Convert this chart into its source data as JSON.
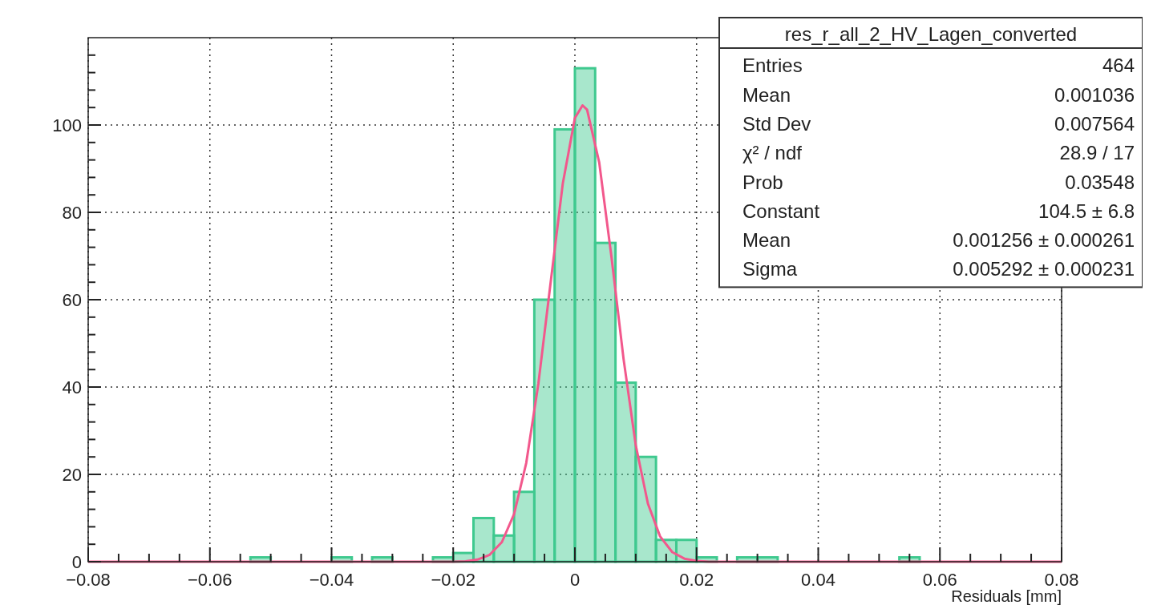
{
  "chart_data": {
    "type": "histogram",
    "xlabel": "Residuals [mm]",
    "bins": [
      -0.08,
      -0.07667,
      -0.07333,
      -0.07,
      -0.06667,
      -0.06333,
      -0.06,
      -0.05667,
      -0.05333,
      -0.05,
      -0.04667,
      -0.04333,
      -0.04,
      -0.03667,
      -0.03333,
      -0.03,
      -0.02667,
      -0.02333,
      -0.02,
      -0.01667,
      -0.01333,
      -0.01,
      -0.00667,
      -0.00333,
      0,
      0.00333,
      0.00667,
      0.01,
      0.01333,
      0.01667,
      0.02,
      0.02333,
      0.02667,
      0.03,
      0.03333,
      0.03667,
      0.04,
      0.04333,
      0.04667,
      0.05,
      0.05333,
      0.05667,
      0.06,
      0.06333,
      0.06667,
      0.07,
      0.07333,
      0.07667,
      0.08
    ],
    "series": [
      {
        "color": "#3fc98f",
        "values": [
          0,
          0,
          0,
          0,
          0,
          0,
          0,
          0,
          1,
          0,
          0,
          0,
          1,
          0,
          1,
          0,
          0,
          1,
          2,
          10,
          6,
          16,
          60,
          99,
          113,
          73,
          41,
          24,
          5,
          5,
          1,
          0,
          1,
          1,
          0,
          0,
          0,
          0,
          0,
          0,
          1,
          0,
          0,
          0,
          0,
          0,
          0,
          0
        ]
      },
      {
        "type": "line",
        "color": "#f2588c",
        "x": [
          -0.08,
          -0.025,
          -0.02,
          -0.018,
          -0.016,
          -0.014,
          -0.012,
          -0.01,
          -0.008,
          -0.006,
          -0.004,
          -0.002,
          0,
          0.001256,
          0.002,
          0.004,
          0.006,
          0.008,
          0.01,
          0.012,
          0.014,
          0.016,
          0.018,
          0.02,
          0.022,
          0.026,
          0.08
        ],
        "values": [
          0,
          0,
          0,
          0.1,
          0.5,
          1.6,
          4.5,
          10.9,
          22.6,
          40.8,
          63.8,
          86.5,
          101.6,
          104.5,
          103.5,
          91.4,
          69.9,
          46.4,
          26.7,
          13.3,
          5.8,
          2.2,
          0.7,
          0.2,
          0,
          0,
          0
        ]
      }
    ],
    "xlim": [
      -0.08,
      0.08
    ],
    "xticks": [
      {
        "value": -0.08,
        "label": "−0.08"
      },
      {
        "value": -0.075,
        "label": null
      },
      {
        "value": -0.07,
        "label": null
      },
      {
        "value": -0.065,
        "label": null
      },
      {
        "value": -0.06,
        "label": "−0.06"
      },
      {
        "value": -0.055,
        "label": null
      },
      {
        "value": -0.05,
        "label": null
      },
      {
        "value": -0.045,
        "label": null
      },
      {
        "value": -0.04,
        "label": "−0.04"
      },
      {
        "value": -0.035,
        "label": null
      },
      {
        "value": -0.03,
        "label": null
      },
      {
        "value": -0.025,
        "label": null
      },
      {
        "value": -0.02,
        "label": "−0.02"
      },
      {
        "value": -0.015,
        "label": null
      },
      {
        "value": -0.01,
        "label": null
      },
      {
        "value": -0.005,
        "label": null
      },
      0,
      {
        "value": 0.005,
        "label": null
      },
      {
        "value": 0.01,
        "label": null
      },
      {
        "value": 0.015,
        "label": null
      },
      0.02,
      {
        "value": 0.025,
        "label": null
      },
      {
        "value": 0.03,
        "label": null
      },
      {
        "value": 0.035,
        "label": null
      },
      0.04,
      {
        "value": 0.045,
        "label": null
      },
      {
        "value": 0.05,
        "label": null
      },
      {
        "value": 0.055,
        "label": null
      },
      0.06,
      {
        "value": 0.065,
        "label": null
      },
      {
        "value": 0.07,
        "label": null
      },
      {
        "value": 0.075,
        "label": null
      },
      0.08
    ],
    "ylim": [
      0,
      120
    ],
    "yticks": [
      0,
      {
        "value": 4,
        "label": null
      },
      {
        "value": 8,
        "label": null
      },
      {
        "value": 12,
        "label": null
      },
      {
        "value": 16,
        "label": null
      },
      20,
      {
        "value": 24,
        "label": null
      },
      {
        "value": 28,
        "label": null
      },
      {
        "value": 32,
        "label": null
      },
      {
        "value": 36,
        "label": null
      },
      40,
      {
        "value": 44,
        "label": null
      },
      {
        "value": 48,
        "label": null
      },
      {
        "value": 52,
        "label": null
      },
      {
        "value": 56,
        "label": null
      },
      60,
      {
        "value": 64,
        "label": null
      },
      {
        "value": 68,
        "label": null
      },
      {
        "value": 72,
        "label": null
      },
      {
        "value": 76,
        "label": null
      },
      80,
      {
        "value": 84,
        "label": null
      },
      {
        "value": 88,
        "label": null
      },
      {
        "value": 92,
        "label": null
      },
      {
        "value": 96,
        "label": null
      },
      100,
      {
        "value": 104,
        "label": null
      },
      {
        "value": 108,
        "label": null
      },
      {
        "value": 112,
        "label": null
      },
      {
        "value": 116,
        "label": null
      }
    ],
    "grid": true,
    "annotations": [
      "res_r_all_2_HV_Lagen_converted",
      "Entries",
      "464",
      "Mean",
      "0.001036",
      "Std Dev",
      "0.007564",
      "χ² / ndf",
      "28.9 / 17",
      "Prob",
      "0.03548",
      "Constant",
      "104.5 ± 6.8",
      "Mean",
      "0.001256 ± 0.000261",
      "Sigma",
      "0.005292 ± 0.000231"
    ]
  }
}
